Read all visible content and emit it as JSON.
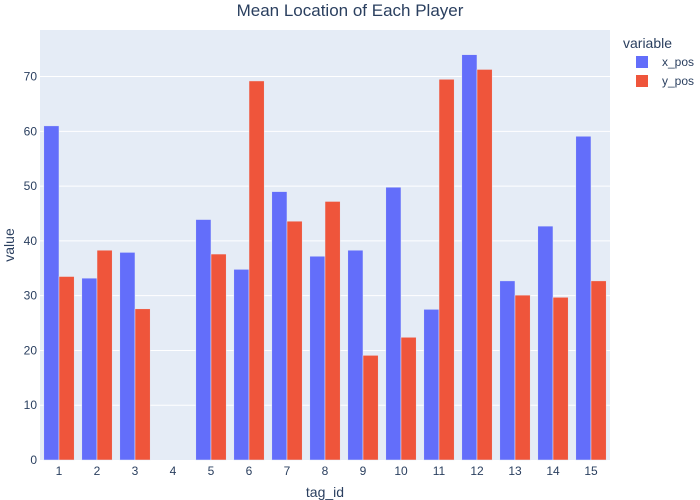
{
  "chart_data": {
    "type": "bar",
    "title": "Mean Location of Each Player",
    "xlabel": "tag_id",
    "ylabel": "value",
    "legend_title": "variable",
    "legend_position": "top-right",
    "grid": true,
    "ylim": [
      0,
      78.5
    ],
    "yticks": [
      0,
      10,
      20,
      30,
      40,
      50,
      60,
      70
    ],
    "categories": [
      "1",
      "2",
      "3",
      "4",
      "5",
      "6",
      "7",
      "8",
      "9",
      "10",
      "11",
      "12",
      "13",
      "14",
      "15"
    ],
    "series": [
      {
        "name": "x_pos",
        "color": "#636efa",
        "values": [
          61.0,
          33.2,
          37.9,
          0,
          43.9,
          34.8,
          49.0,
          37.2,
          38.3,
          49.8,
          27.5,
          74.0,
          32.7,
          42.7,
          59.1
        ]
      },
      {
        "name": "y_pos",
        "color": "#ef553b",
        "values": [
          33.5,
          38.3,
          27.6,
          0,
          37.6,
          69.2,
          43.6,
          47.2,
          19.1,
          22.4,
          69.5,
          71.3,
          30.1,
          29.7,
          32.7
        ]
      }
    ],
    "colors": {
      "plot_background": "#e5ecf6",
      "grid": "#ffffff",
      "text": "#2a3f5f"
    }
  }
}
